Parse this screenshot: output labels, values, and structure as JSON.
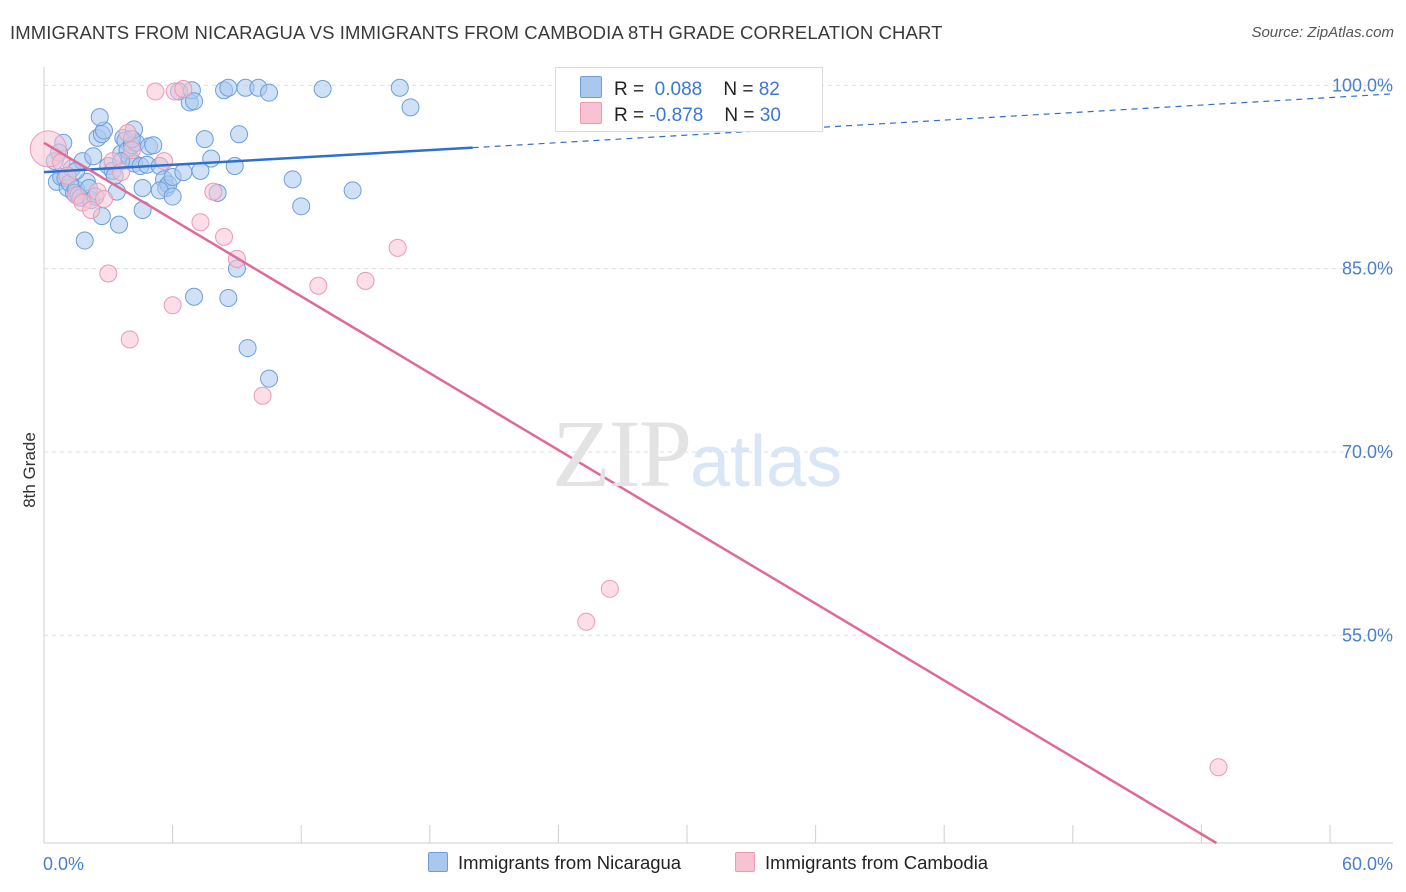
{
  "header": {
    "title": "IMMIGRANTS FROM NICARAGUA VS IMMIGRANTS FROM CAMBODIA 8TH GRADE CORRELATION CHART",
    "source": "Source: ZipAtlas.com"
  },
  "watermark": {
    "zip": "ZIP",
    "atlas": "atlas"
  },
  "legend": {
    "rows": [
      {
        "r_label": "R =",
        "r_value": "0.088",
        "n_label": "N =",
        "n_value": "82"
      },
      {
        "r_label": "R =",
        "r_value": "-0.878",
        "n_label": "N =",
        "n_value": "30"
      }
    ]
  },
  "bottom_legend": {
    "nicaragua": "Immigrants from Nicaragua",
    "cambodia": "Immigrants from Cambodia"
  },
  "colors": {
    "nicaragua_fill": "#aac8ee",
    "nicaragua_stroke": "#6d9edc",
    "nicaragua_line": "#2f6fcf",
    "cambodia_fill": "#f7c3d3",
    "cambodia_stroke": "#ec9ab4",
    "cambodia_line": "#e06a96",
    "tick_text": "#4a7fcb"
  },
  "chart_data": {
    "type": "scatter",
    "title": "IMMIGRANTS FROM NICARAGUA VS IMMIGRANTS FROM CAMBODIA 8TH GRADE CORRELATION CHART",
    "xlabel": "",
    "ylabel": "8th Grade",
    "xlim": [
      0,
      60
    ],
    "ylim": [
      38,
      101.5
    ],
    "x_tick_labels": [
      "0.0%",
      "60.0%"
    ],
    "y_ticks": [
      {
        "value": 100,
        "label": "100.0%"
      },
      {
        "value": 85,
        "label": "85.0%"
      },
      {
        "value": 70,
        "label": "70.0%"
      },
      {
        "value": 55,
        "label": "55.0%"
      }
    ],
    "series": [
      {
        "name": "Immigrants from Nicaragua",
        "points": [
          [
            0.5,
            93.8
          ],
          [
            0.6,
            92.1
          ],
          [
            0.8,
            92.5
          ],
          [
            0.9,
            95.3
          ],
          [
            1.0,
            92.4
          ],
          [
            1.1,
            91.6
          ],
          [
            1.2,
            92.0
          ],
          [
            1.3,
            93.2
          ],
          [
            1.4,
            91.2
          ],
          [
            1.5,
            91.5
          ],
          [
            1.6,
            91.0
          ],
          [
            1.7,
            90.8
          ],
          [
            1.8,
            93.8
          ],
          [
            2.0,
            92.1
          ],
          [
            2.1,
            91.6
          ],
          [
            2.2,
            90.6
          ],
          [
            2.4,
            90.9
          ],
          [
            2.5,
            95.7
          ],
          [
            2.7,
            96.0
          ],
          [
            2.8,
            96.3
          ],
          [
            3.0,
            93.4
          ],
          [
            3.2,
            93.0
          ],
          [
            3.4,
            91.3
          ],
          [
            3.6,
            94.4
          ],
          [
            3.7,
            95.7
          ],
          [
            3.8,
            95.5
          ],
          [
            3.9,
            94.7
          ],
          [
            4.0,
            94.1
          ],
          [
            4.1,
            95.1
          ],
          [
            4.2,
            93.6
          ],
          [
            4.3,
            95.3
          ],
          [
            4.5,
            93.4
          ],
          [
            4.6,
            91.6
          ],
          [
            4.8,
            93.5
          ],
          [
            4.9,
            95.0
          ],
          [
            5.1,
            95.1
          ],
          [
            5.4,
            93.4
          ],
          [
            5.6,
            92.3
          ],
          [
            5.7,
            91.6
          ],
          [
            5.8,
            91.9
          ],
          [
            6.0,
            92.5
          ],
          [
            6.3,
            99.5
          ],
          [
            6.8,
            98.6
          ],
          [
            6.9,
            99.6
          ],
          [
            7.0,
            98.7
          ],
          [
            7.3,
            93.0
          ],
          [
            7.5,
            95.6
          ],
          [
            7.8,
            94.0
          ],
          [
            8.1,
            91.2
          ],
          [
            8.4,
            99.6
          ],
          [
            8.6,
            99.8
          ],
          [
            8.9,
            93.4
          ],
          [
            9.1,
            96.0
          ],
          [
            9.4,
            99.8
          ],
          [
            10.0,
            99.8
          ],
          [
            10.5,
            99.4
          ],
          [
            11.6,
            92.3
          ],
          [
            12.0,
            90.1
          ],
          [
            13.0,
            99.7
          ],
          [
            16.6,
            99.8
          ],
          [
            17.1,
            98.2
          ],
          [
            4.2,
            96.4
          ],
          [
            3.6,
            93.8
          ],
          [
            2.6,
            97.4
          ],
          [
            1.9,
            87.3
          ],
          [
            2.7,
            89.3
          ],
          [
            3.5,
            88.6
          ],
          [
            4.6,
            89.8
          ],
          [
            5.4,
            91.4
          ],
          [
            6.0,
            90.9
          ],
          [
            7.0,
            82.7
          ],
          [
            8.6,
            82.6
          ],
          [
            9.0,
            85.0
          ],
          [
            9.5,
            78.5
          ],
          [
            10.5,
            76.0
          ],
          [
            14.4,
            91.4
          ],
          [
            2.3,
            94.2
          ],
          [
            1.5,
            93.0
          ],
          [
            0.7,
            94.5
          ],
          [
            3.3,
            92.6
          ],
          [
            6.5,
            92.9
          ],
          [
            4.1,
            95.6
          ]
        ]
      },
      {
        "name": "Immigrants from Cambodia",
        "points": [
          [
            0.2,
            94.8
          ],
          [
            0.8,
            93.7
          ],
          [
            1.1,
            92.6
          ],
          [
            1.5,
            91.0
          ],
          [
            1.8,
            90.4
          ],
          [
            2.2,
            89.8
          ],
          [
            2.5,
            91.3
          ],
          [
            2.8,
            90.7
          ],
          [
            3.2,
            93.8
          ],
          [
            3.6,
            92.9
          ],
          [
            3.9,
            96.1
          ],
          [
            4.1,
            94.7
          ],
          [
            5.2,
            99.5
          ],
          [
            5.6,
            93.8
          ],
          [
            6.1,
            99.5
          ],
          [
            6.5,
            99.7
          ],
          [
            7.3,
            88.8
          ],
          [
            7.9,
            91.3
          ],
          [
            8.4,
            87.6
          ],
          [
            9.0,
            85.8
          ],
          [
            3.0,
            84.6
          ],
          [
            6.0,
            82.0
          ],
          [
            4.0,
            79.2
          ],
          [
            10.2,
            74.6
          ],
          [
            12.8,
            83.6
          ],
          [
            15.0,
            84.0
          ],
          [
            16.5,
            86.7
          ],
          [
            25.3,
            56.1
          ],
          [
            26.4,
            58.8
          ],
          [
            54.8,
            44.2
          ]
        ]
      }
    ],
    "trend_lines": [
      {
        "series": "Immigrants from Nicaragua",
        "solid": [
          [
            0,
            92.9
          ],
          [
            20,
            94.9
          ]
        ],
        "dashed": [
          [
            20,
            94.9
          ],
          [
            60,
            99.0
          ]
        ]
      },
      {
        "series": "Immigrants from Cambodia",
        "solid": [
          [
            0,
            95.3
          ],
          [
            54.7,
            38
          ]
        ]
      }
    ]
  }
}
